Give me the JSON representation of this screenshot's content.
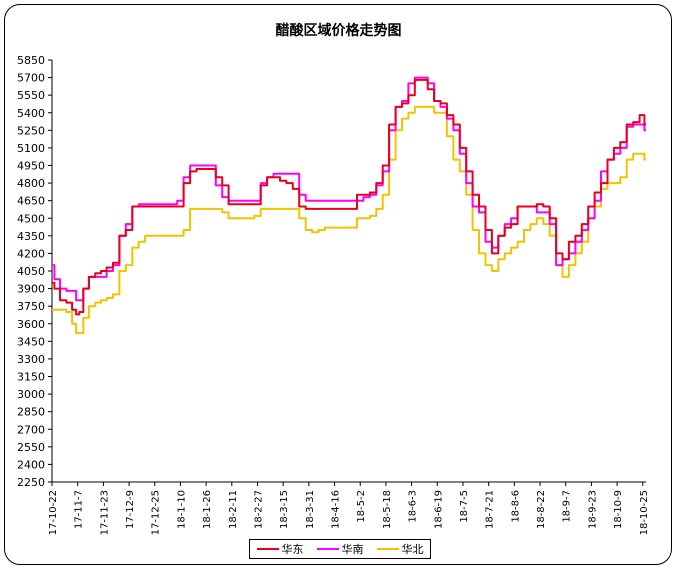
{
  "chart_data": {
    "type": "line",
    "title": "醋酸区域价格走势图",
    "ylim": [
      2250,
      5850
    ],
    "yticks": [
      2250,
      2400,
      2550,
      2700,
      2850,
      3000,
      3150,
      3300,
      3450,
      3600,
      3750,
      3900,
      4050,
      4200,
      4350,
      4500,
      4650,
      4800,
      4950,
      5100,
      5250,
      5400,
      5550,
      5700,
      5850
    ],
    "xticks": [
      "17-10-22",
      "17-11-7",
      "17-11-23",
      "17-12-9",
      "17-12-25",
      "18-1-10",
      "18-1-26",
      "18-2-11",
      "18-2-27",
      "18-3-15",
      "18-3-31",
      "18-4-16",
      "18-5-2",
      "18-5-18",
      "18-6-3",
      "18-6-19",
      "18-7-5",
      "18-7-21",
      "18-8-6",
      "18-8-22",
      "18-9-7",
      "18-9-23",
      "18-10-9",
      "18-10-25"
    ],
    "x_points": [
      "17-10-22",
      "17-10-25",
      "17-10-29",
      "17-11-2",
      "17-11-5",
      "17-11-7",
      "17-11-9",
      "17-11-12",
      "17-11-16",
      "17-11-20",
      "17-11-23",
      "17-11-27",
      "17-12-1",
      "17-12-5",
      "17-12-9",
      "17-12-13",
      "17-12-17",
      "17-12-21",
      "17-12-25",
      "17-12-29",
      "18-1-2",
      "18-1-6",
      "18-1-10",
      "18-1-14",
      "18-1-18",
      "18-1-22",
      "18-1-26",
      "18-1-30",
      "18-2-3",
      "18-2-7",
      "18-2-11",
      "18-2-15",
      "18-2-19",
      "18-2-23",
      "18-2-27",
      "18-3-3",
      "18-3-7",
      "18-3-11",
      "18-3-15",
      "18-3-19",
      "18-3-23",
      "18-3-27",
      "18-3-31",
      "18-4-4",
      "18-4-8",
      "18-4-12",
      "18-4-16",
      "18-4-20",
      "18-4-24",
      "18-4-28",
      "18-5-2",
      "18-5-6",
      "18-5-10",
      "18-5-14",
      "18-5-18",
      "18-5-22",
      "18-5-26",
      "18-5-30",
      "18-6-3",
      "18-6-7",
      "18-6-11",
      "18-6-15",
      "18-6-19",
      "18-6-23",
      "18-6-27",
      "18-7-1",
      "18-7-5",
      "18-7-9",
      "18-7-13",
      "18-7-17",
      "18-7-21",
      "18-7-25",
      "18-7-29",
      "18-8-2",
      "18-8-6",
      "18-8-10",
      "18-8-14",
      "18-8-18",
      "18-8-22",
      "18-8-26",
      "18-8-30",
      "18-9-3",
      "18-9-7",
      "18-9-11",
      "18-9-15",
      "18-9-19",
      "18-9-23",
      "18-9-27",
      "18-10-1",
      "18-10-5",
      "18-10-9",
      "18-10-13",
      "18-10-17",
      "18-10-21",
      "18-10-25",
      "18-10-27"
    ],
    "series": [
      {
        "name": "华东",
        "color": "#e8001c",
        "values": [
          3950,
          3900,
          3800,
          3780,
          3720,
          3680,
          3700,
          3900,
          4000,
          4030,
          4050,
          4080,
          4120,
          4350,
          4400,
          4600,
          4600,
          4600,
          4600,
          4600,
          4600,
          4600,
          4600,
          4800,
          4900,
          4920,
          4920,
          4920,
          4850,
          4780,
          4620,
          4620,
          4620,
          4620,
          4620,
          4780,
          4850,
          4850,
          4820,
          4800,
          4750,
          4600,
          4580,
          4580,
          4580,
          4580,
          4580,
          4580,
          4580,
          4580,
          4700,
          4700,
          4720,
          4800,
          4950,
          5300,
          5450,
          5480,
          5550,
          5680,
          5680,
          5600,
          5500,
          5480,
          5380,
          5300,
          5100,
          4900,
          4700,
          4600,
          4400,
          4200,
          4350,
          4420,
          4450,
          4600,
          4600,
          4600,
          4620,
          4600,
          4500,
          4200,
          4150,
          4300,
          4350,
          4450,
          4600,
          4720,
          4800,
          5000,
          5100,
          5150,
          5300,
          5320,
          5380,
          5300
        ]
      },
      {
        "name": "华南",
        "color": "#ff00ff",
        "values": [
          4100,
          3980,
          3900,
          3880,
          3880,
          3800,
          3800,
          3900,
          4000,
          4000,
          4000,
          4050,
          4100,
          4350,
          4450,
          4600,
          4620,
          4620,
          4620,
          4620,
          4620,
          4620,
          4650,
          4850,
          4950,
          4950,
          4950,
          4950,
          4780,
          4680,
          4650,
          4650,
          4650,
          4650,
          4650,
          4800,
          4850,
          4880,
          4880,
          4880,
          4880,
          4700,
          4650,
          4650,
          4650,
          4650,
          4650,
          4650,
          4650,
          4650,
          4650,
          4680,
          4700,
          4780,
          4900,
          5250,
          5450,
          5500,
          5650,
          5700,
          5700,
          5650,
          5500,
          5450,
          5350,
          5250,
          5050,
          4800,
          4600,
          4550,
          4300,
          4250,
          4350,
          4450,
          4500,
          4600,
          4600,
          4600,
          4550,
          4550,
          4450,
          4100,
          4150,
          4200,
          4300,
          4400,
          4500,
          4650,
          4900,
          5000,
          5050,
          5100,
          5280,
          5300,
          5300,
          5250
        ]
      },
      {
        "name": "华北",
        "color": "#f2c400",
        "values": [
          3720,
          3720,
          3720,
          3700,
          3600,
          3520,
          3520,
          3650,
          3750,
          3780,
          3800,
          3820,
          3850,
          4050,
          4100,
          4250,
          4300,
          4350,
          4350,
          4350,
          4350,
          4350,
          4350,
          4400,
          4580,
          4580,
          4580,
          4580,
          4580,
          4550,
          4500,
          4500,
          4500,
          4500,
          4520,
          4580,
          4580,
          4580,
          4580,
          4580,
          4580,
          4500,
          4400,
          4380,
          4400,
          4420,
          4420,
          4420,
          4420,
          4420,
          4500,
          4500,
          4520,
          4580,
          4700,
          5000,
          5250,
          5350,
          5400,
          5450,
          5450,
          5450,
          5400,
          5400,
          5200,
          5000,
          4900,
          4700,
          4400,
          4200,
          4100,
          4050,
          4150,
          4200,
          4250,
          4300,
          4400,
          4450,
          4500,
          4450,
          4350,
          4100,
          4000,
          4100,
          4200,
          4300,
          4500,
          4600,
          4750,
          4800,
          4800,
          4850,
          5000,
          5050,
          5050,
          5000
        ]
      }
    ]
  }
}
